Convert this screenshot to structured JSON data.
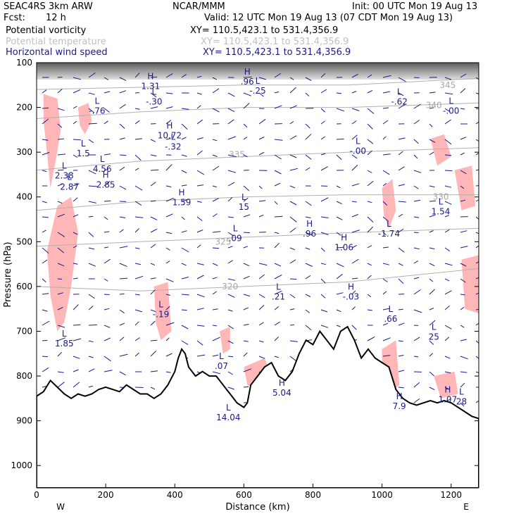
{
  "header": {
    "model": "SEAC4RS  3km ARW",
    "center": "NCAR/MMM",
    "init": "Init: 00 UTC Mon 19 Aug 13",
    "fcst_label": "Fcst:",
    "fcst_value": "12 h",
    "valid": "Valid: 12 UTC Mon 19 Aug 13 (07 CDT Mon 19 Aug 13)",
    "fields": [
      {
        "name": "Potential vorticity",
        "xy": "XY= 110.5,423.1 to 531.4,356.9",
        "color": "#000000"
      },
      {
        "name": "Potential temperature",
        "xy": "XY= 110.5,423.1 to 531.4,356.9",
        "color": "#c0c0c0"
      },
      {
        "name": "Horizontal wind speed",
        "xy": "XY= 110.5,423.1 to 531.4,356.9",
        "color": "#1a1a8c"
      }
    ]
  },
  "chart_data": {
    "type": "cross-section",
    "xlabel": "Distance (km)",
    "ylabel": "Pressure (hPa)",
    "xlim": [
      0,
      1280
    ],
    "ylim": [
      1050,
      100
    ],
    "x_ticks": [
      0,
      200,
      400,
      600,
      800,
      1000,
      1200
    ],
    "y_ticks": [
      100,
      200,
      300,
      400,
      500,
      600,
      700,
      800,
      900,
      1000
    ],
    "x_end_labels": {
      "left": "W",
      "right": "E"
    },
    "terrain_surface_hpa": [
      [
        0,
        845
      ],
      [
        20,
        835
      ],
      [
        40,
        810
      ],
      [
        60,
        825
      ],
      [
        80,
        840
      ],
      [
        100,
        850
      ],
      [
        120,
        840
      ],
      [
        140,
        845
      ],
      [
        160,
        840
      ],
      [
        180,
        830
      ],
      [
        200,
        825
      ],
      [
        220,
        830
      ],
      [
        240,
        835
      ],
      [
        260,
        820
      ],
      [
        280,
        830
      ],
      [
        300,
        840
      ],
      [
        320,
        840
      ],
      [
        340,
        850
      ],
      [
        360,
        840
      ],
      [
        380,
        820
      ],
      [
        400,
        790
      ],
      [
        410,
        760
      ],
      [
        420,
        740
      ],
      [
        430,
        750
      ],
      [
        440,
        780
      ],
      [
        460,
        800
      ],
      [
        480,
        790
      ],
      [
        500,
        800
      ],
      [
        520,
        800
      ],
      [
        540,
        820
      ],
      [
        560,
        840
      ],
      [
        580,
        860
      ],
      [
        600,
        870
      ],
      [
        610,
        860
      ],
      [
        620,
        820
      ],
      [
        640,
        800
      ],
      [
        660,
        780
      ],
      [
        680,
        770
      ],
      [
        700,
        800
      ],
      [
        720,
        810
      ],
      [
        740,
        790
      ],
      [
        760,
        750
      ],
      [
        780,
        720
      ],
      [
        800,
        730
      ],
      [
        820,
        700
      ],
      [
        840,
        720
      ],
      [
        860,
        740
      ],
      [
        880,
        700
      ],
      [
        900,
        690
      ],
      [
        920,
        720
      ],
      [
        940,
        760
      ],
      [
        960,
        740
      ],
      [
        980,
        760
      ],
      [
        1000,
        770
      ],
      [
        1020,
        780
      ],
      [
        1040,
        830
      ],
      [
        1060,
        850
      ],
      [
        1080,
        860
      ],
      [
        1100,
        865
      ],
      [
        1120,
        860
      ],
      [
        1140,
        855
      ],
      [
        1160,
        860
      ],
      [
        1180,
        855
      ],
      [
        1200,
        860
      ],
      [
        1220,
        870
      ],
      [
        1240,
        880
      ],
      [
        1260,
        890
      ],
      [
        1280,
        895
      ]
    ],
    "theta_isentropes": [
      {
        "label": "345",
        "points": [
          [
            0,
            160
          ],
          [
            300,
            155
          ],
          [
            600,
            150
          ],
          [
            900,
            150
          ],
          [
            1280,
            135
          ]
        ],
        "label_at": [
          1190,
          150
        ]
      },
      {
        "label": "340",
        "points": [
          [
            0,
            225
          ],
          [
            300,
            210
          ],
          [
            600,
            200
          ],
          [
            900,
            200
          ],
          [
            1280,
            190
          ]
        ],
        "label_at": [
          1150,
          195
        ]
      },
      {
        "label": "335",
        "points": [
          [
            0,
            340
          ],
          [
            300,
            320
          ],
          [
            600,
            310
          ],
          [
            900,
            300
          ],
          [
            1280,
            290
          ]
        ],
        "label_at": [
          580,
          305
        ]
      },
      {
        "label": "330",
        "points": [
          [
            0,
            430
          ],
          [
            300,
            410
          ],
          [
            600,
            400
          ],
          [
            900,
            395
          ],
          [
            1280,
            395
          ]
        ],
        "label_at": [
          1170,
          400
        ]
      },
      {
        "label": "325",
        "points": [
          [
            0,
            510
          ],
          [
            300,
            500
          ],
          [
            600,
            490
          ],
          [
            900,
            480
          ],
          [
            1280,
            470
          ]
        ],
        "label_at": [
          540,
          500
        ]
      },
      {
        "label": "320",
        "points": [
          [
            0,
            600
          ],
          [
            300,
            610
          ],
          [
            600,
            600
          ],
          [
            900,
            590
          ],
          [
            1280,
            560
          ]
        ],
        "label_at": [
          560,
          600
        ]
      }
    ],
    "extrema": [
      {
        "type": "H",
        "value": "1.31",
        "x": 330,
        "p": 140
      },
      {
        "type": "L",
        "value": "-.76",
        "x": 175,
        "p": 195
      },
      {
        "type": "L",
        "value": "-.30",
        "x": 340,
        "p": 175
      },
      {
        "type": "H",
        "value": ".96",
        "x": 610,
        "p": 130
      },
      {
        "type": "L",
        "value": "-.25",
        "x": 640,
        "p": 150
      },
      {
        "type": "L",
        "value": "-.62",
        "x": 1050,
        "p": 175
      },
      {
        "type": "L",
        "value": "-.00",
        "x": 1200,
        "p": 195
      },
      {
        "type": "H",
        "value": "10.72",
        "x": 385,
        "p": 250
      },
      {
        "type": "L",
        "value": "-.32",
        "x": 395,
        "p": 275
      },
      {
        "type": "L",
        "value": "-.00",
        "x": 930,
        "p": 285
      },
      {
        "type": "L",
        "value": "1.5",
        "x": 135,
        "p": 290
      },
      {
        "type": "L",
        "value": "4.56",
        "x": 190,
        "p": 325
      },
      {
        "type": "L",
        "value": "2.38",
        "x": 80,
        "p": 340
      },
      {
        "type": "L",
        "value": "2.87",
        "x": 95,
        "p": 365
      },
      {
        "type": "H",
        "value": "2.85",
        "x": 200,
        "p": 360
      },
      {
        "type": "H",
        "value": "1.59",
        "x": 420,
        "p": 400
      },
      {
        "type": "L",
        "value": "15",
        "x": 600,
        "p": 410
      },
      {
        "type": "L",
        "value": "1.54",
        "x": 1170,
        "p": 420
      },
      {
        "type": "L",
        "value": ".09",
        "x": 575,
        "p": 480
      },
      {
        "type": "H",
        "value": ".96",
        "x": 790,
        "p": 470
      },
      {
        "type": "H",
        "value": "1.06",
        "x": 890,
        "p": 500
      },
      {
        "type": "L",
        "value": "-1.74",
        "x": 1020,
        "p": 470
      },
      {
        "type": "L",
        "value": ".21",
        "x": 700,
        "p": 610
      },
      {
        "type": "H",
        "value": "-.03",
        "x": 910,
        "p": 610
      },
      {
        "type": "L",
        "value": "-.19",
        "x": 360,
        "p": 650
      },
      {
        "type": "L",
        "value": ".66",
        "x": 1025,
        "p": 660
      },
      {
        "type": "L",
        "value": "25",
        "x": 1150,
        "p": 700
      },
      {
        "type": "L",
        "value": "1.85",
        "x": 80,
        "p": 715
      },
      {
        "type": "L",
        "value": ".07",
        "x": 535,
        "p": 765
      },
      {
        "type": "H",
        "value": "5.04",
        "x": 710,
        "p": 825
      },
      {
        "type": "H",
        "value": "7.9",
        "x": 1050,
        "p": 855
      },
      {
        "type": "H",
        "value": "1.07",
        "x": 1190,
        "p": 840
      },
      {
        "type": "L",
        "value": "28",
        "x": 1230,
        "p": 845
      },
      {
        "type": "L",
        "value": "14.04",
        "x": 555,
        "p": 880
      }
    ],
    "pv_shading_regions": [
      [
        [
          20,
          170
        ],
        [
          60,
          180
        ],
        [
          70,
          250
        ],
        [
          55,
          320
        ],
        [
          40,
          380
        ],
        [
          30,
          300
        ],
        [
          20,
          230
        ]
      ],
      [
        [
          120,
          200
        ],
        [
          150,
          190
        ],
        [
          160,
          230
        ],
        [
          140,
          260
        ],
        [
          125,
          240
        ]
      ],
      [
        [
          60,
          420
        ],
        [
          100,
          400
        ],
        [
          120,
          480
        ],
        [
          100,
          600
        ],
        [
          80,
          680
        ],
        [
          60,
          700
        ],
        [
          40,
          620
        ],
        [
          30,
          520
        ]
      ],
      [
        [
          340,
          600
        ],
        [
          380,
          590
        ],
        [
          390,
          700
        ],
        [
          360,
          720
        ],
        [
          345,
          680
        ]
      ],
      [
        [
          530,
          700
        ],
        [
          560,
          690
        ],
        [
          560,
          740
        ],
        [
          540,
          750
        ]
      ],
      [
        [
          600,
          780
        ],
        [
          660,
          760
        ],
        [
          680,
          800
        ],
        [
          640,
          830
        ],
        [
          610,
          820
        ]
      ],
      [
        [
          1000,
          380
        ],
        [
          1030,
          360
        ],
        [
          1040,
          430
        ],
        [
          1020,
          470
        ],
        [
          1005,
          440
        ]
      ],
      [
        [
          1000,
          740
        ],
        [
          1040,
          720
        ],
        [
          1050,
          820
        ],
        [
          1020,
          840
        ],
        [
          1000,
          800
        ]
      ],
      [
        [
          1140,
          270
        ],
        [
          1180,
          260
        ],
        [
          1200,
          310
        ],
        [
          1160,
          330
        ]
      ],
      [
        [
          1210,
          340
        ],
        [
          1260,
          330
        ],
        [
          1270,
          420
        ],
        [
          1230,
          430
        ]
      ],
      [
        [
          1230,
          540
        ],
        [
          1280,
          530
        ],
        [
          1280,
          660
        ],
        [
          1240,
          650
        ]
      ],
      [
        [
          1150,
          800
        ],
        [
          1210,
          790
        ],
        [
          1220,
          840
        ],
        [
          1170,
          850
        ]
      ]
    ]
  }
}
